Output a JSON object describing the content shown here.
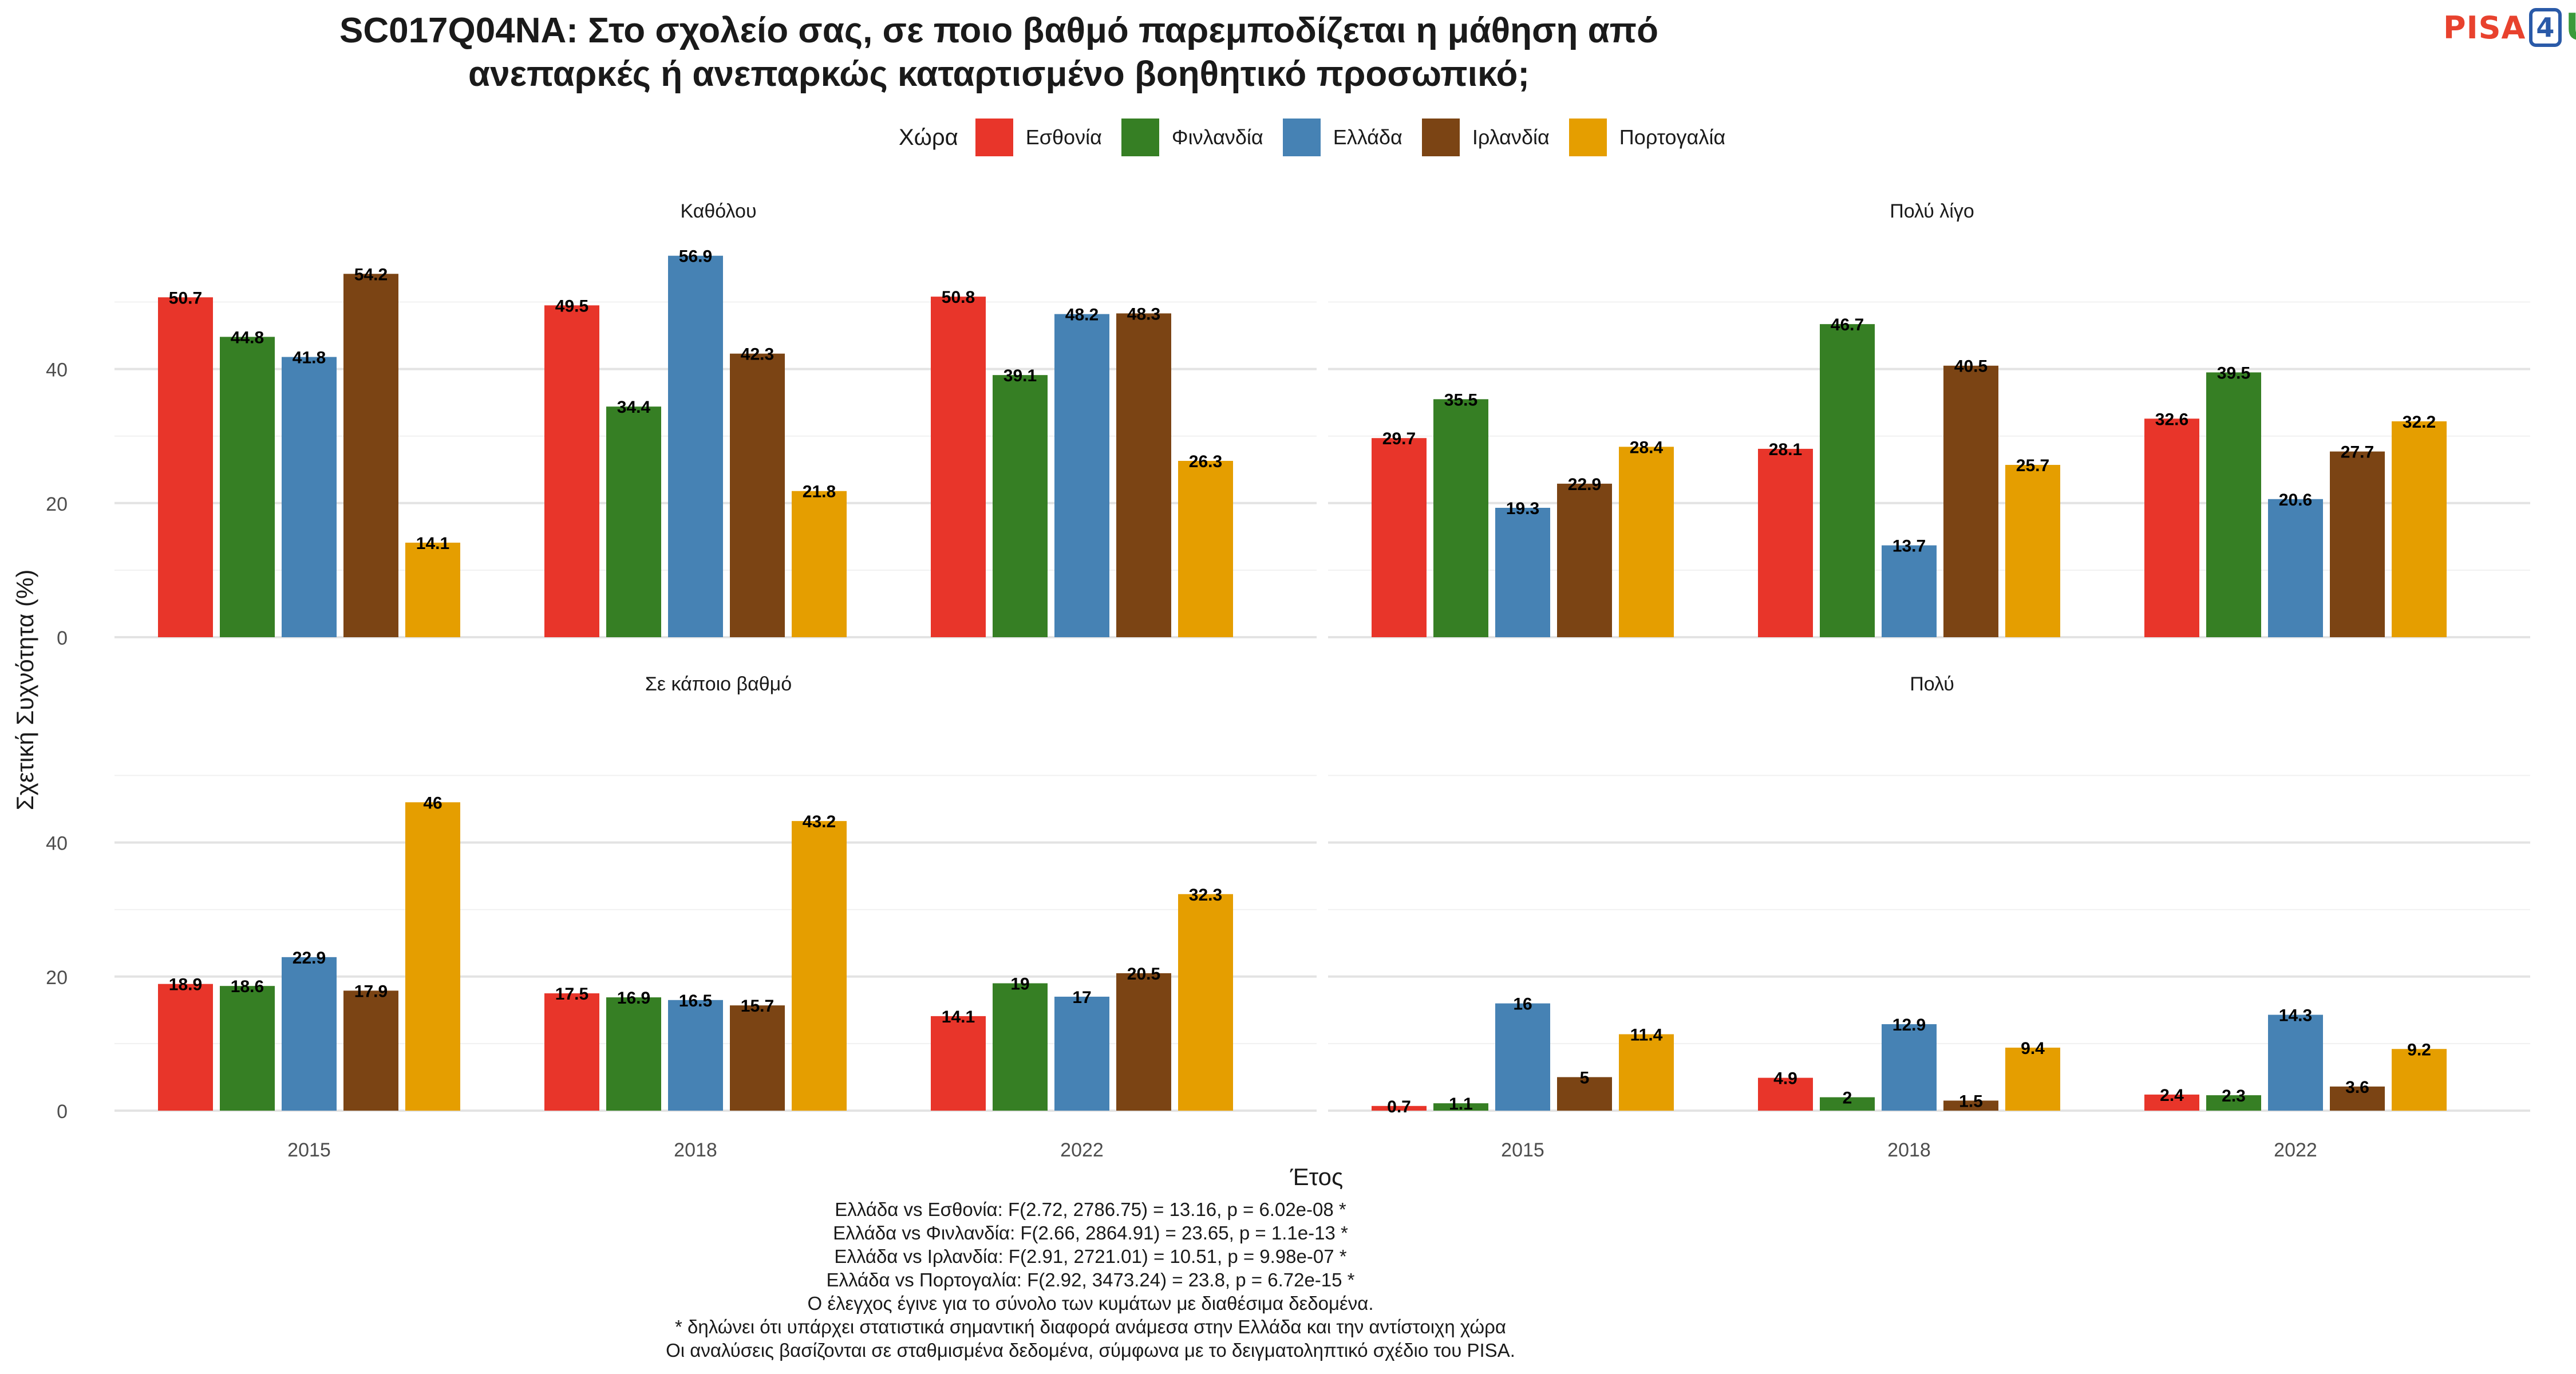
{
  "title_lines": [
    "SC017Q04NA: Στο σχολείο σας, σε ποιο βαθμό παρεμποδίζεται η μάθηση από",
    "ανεπαρκές ή ανεπαρκώς καταρτισμένο βοηθητικό προσωπικό;"
  ],
  "logo": {
    "part1": "PISA",
    "part2": "4",
    "part3": "U"
  },
  "legend": {
    "title": "Χώρα",
    "items": [
      {
        "label": "Εσθονία",
        "color": "#e8352a"
      },
      {
        "label": "Φινλανδία",
        "color": "#367f24"
      },
      {
        "label": "Ελλάδα",
        "color": "#4682b4"
      },
      {
        "label": "Ιρλανδία",
        "color": "#7b4414"
      },
      {
        "label": "Πορτογαλία",
        "color": "#e59e00"
      }
    ]
  },
  "chart_data": {
    "type": "bar",
    "xlabel": "Έτος",
    "ylabel": "Σχετική Συχνότητα (%)",
    "ylim": [
      0,
      58
    ],
    "yticks": [
      0,
      20,
      40
    ],
    "categories": [
      "2015",
      "2018",
      "2022"
    ],
    "grid": true,
    "legend_position": "top",
    "panels": [
      {
        "title": "Καθόλου",
        "series": [
          {
            "name": "Εσθονία",
            "values": [
              50.7,
              49.5,
              50.8
            ]
          },
          {
            "name": "Φινλανδία",
            "values": [
              44.8,
              34.4,
              39.1
            ]
          },
          {
            "name": "Ελλάδα",
            "values": [
              41.8,
              56.9,
              48.2
            ]
          },
          {
            "name": "Ιρλανδία",
            "values": [
              54.2,
              42.3,
              48.3
            ]
          },
          {
            "name": "Πορτογαλία",
            "values": [
              14.1,
              21.8,
              26.3
            ]
          }
        ]
      },
      {
        "title": "Πολύ λίγο",
        "series": [
          {
            "name": "Εσθονία",
            "values": [
              29.7,
              28.1,
              32.6
            ]
          },
          {
            "name": "Φινλανδία",
            "values": [
              35.5,
              46.7,
              39.5
            ]
          },
          {
            "name": "Ελλάδα",
            "values": [
              19.3,
              13.7,
              20.6
            ]
          },
          {
            "name": "Ιρλανδία",
            "values": [
              22.9,
              40.5,
              27.7
            ]
          },
          {
            "name": "Πορτογαλία",
            "values": [
              28.4,
              25.7,
              32.2
            ]
          }
        ]
      },
      {
        "title": "Σε κάποιο βαθμό",
        "series": [
          {
            "name": "Εσθονία",
            "values": [
              18.9,
              17.5,
              14.1
            ]
          },
          {
            "name": "Φινλανδία",
            "values": [
              18.6,
              16.9,
              19
            ]
          },
          {
            "name": "Ελλάδα",
            "values": [
              22.9,
              16.5,
              17
            ]
          },
          {
            "name": "Ιρλανδία",
            "values": [
              17.9,
              15.7,
              20.5
            ]
          },
          {
            "name": "Πορτογαλία",
            "values": [
              46,
              43.2,
              32.3
            ]
          }
        ]
      },
      {
        "title": "Πολύ",
        "series": [
          {
            "name": "Εσθονία",
            "values": [
              0.7,
              4.9,
              2.4
            ]
          },
          {
            "name": "Φινλανδία",
            "values": [
              1.1,
              2,
              2.3
            ]
          },
          {
            "name": "Ελλάδα",
            "values": [
              16,
              12.9,
              14.3
            ]
          },
          {
            "name": "Ιρλανδία",
            "values": [
              5,
              1.5,
              3.6
            ]
          },
          {
            "name": "Πορτογαλία",
            "values": [
              11.4,
              9.4,
              9.2
            ]
          }
        ]
      }
    ]
  },
  "caption_lines": [
    "Ελλάδα vs Εσθονία: F(2.72, 2786.75) = 13.16, p = 6.02e-08 *",
    "Ελλάδα vs Φινλανδία: F(2.66, 2864.91) = 23.65, p = 1.1e-13 *",
    "Ελλάδα vs Ιρλανδία: F(2.91, 2721.01) = 10.51, p = 9.98e-07 *",
    "Ελλάδα vs Πορτογαλία: F(2.92, 3473.24) = 23.8, p = 6.72e-15 *",
    "Ο έλεγχος έγινε για το σύνολο των κυμάτων με διαθέσιμα δεδομένα.",
    "* δηλώνει ότι υπάρχει στατιστικά σημαντική διαφορά ανάμεσα στην Ελλάδα και την αντίστοιχη χώρα",
    "Οι αναλύσεις βασίζονται σε σταθμισμένα δεδομένα, σύμφωνα με το δειγματοληπτικό σχέδιο του PISA."
  ]
}
